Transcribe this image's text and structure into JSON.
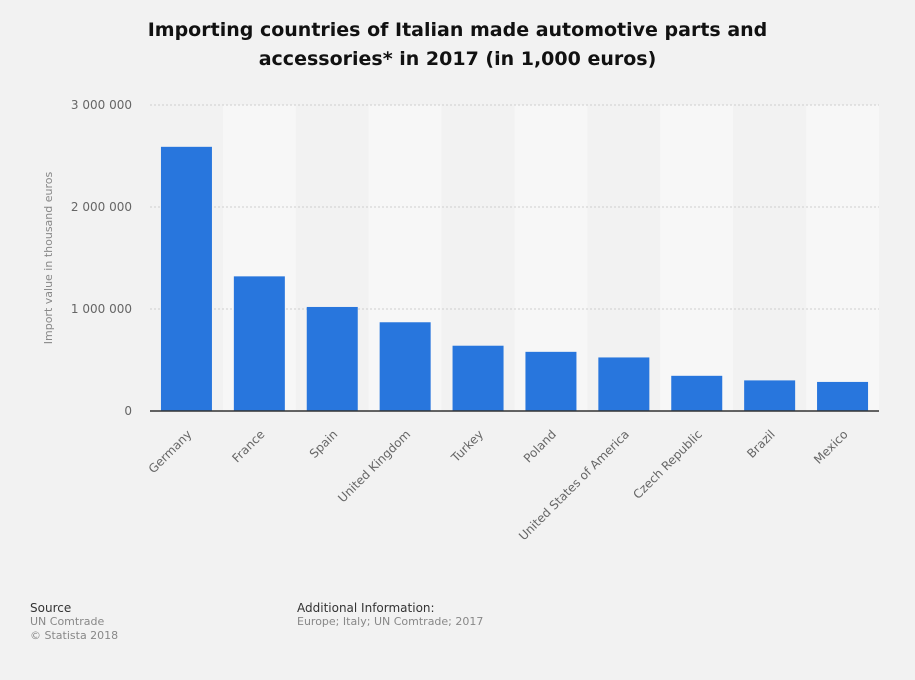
{
  "title": {
    "line1": "Importing countries of Italian made automotive parts and",
    "line2": "accessories* in 2017 (in 1,000 euros)"
  },
  "chart_data": {
    "type": "bar",
    "categories": [
      "Germany",
      "France",
      "Spain",
      "United Kingdom",
      "Turkey",
      "Poland",
      "United States of America",
      "Czech Republic",
      "Brazil",
      "Mexico"
    ],
    "values": [
      2590000,
      1320000,
      1020000,
      870000,
      640000,
      580000,
      525000,
      345000,
      300000,
      285000
    ],
    "ylabel": "Import value in thousand euros",
    "ylim": [
      0,
      3000000
    ],
    "yticks": [
      0,
      1000000,
      2000000,
      3000000
    ],
    "ytick_labels": [
      "0",
      "1 000 000",
      "2 000 000",
      "3 000 000"
    ],
    "grid": true,
    "bar_color": "#2876dd"
  },
  "footer": {
    "source_heading": "Source",
    "source_lines": [
      "UN Comtrade",
      "© Statista 2018"
    ],
    "info_heading": "Additional Information:",
    "info_lines": [
      "Europe; Italy; UN Comtrade; 2017"
    ]
  }
}
